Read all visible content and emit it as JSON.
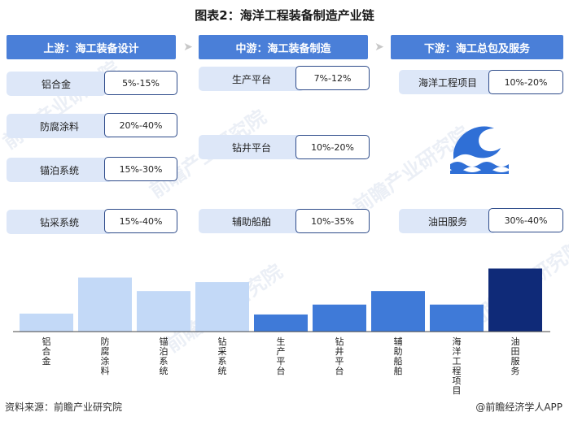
{
  "title": "图表2：海洋工程装备制造产业链",
  "stages": [
    {
      "label": "上游：海工装备设计"
    },
    {
      "label": "中游：海工装备制造"
    },
    {
      "label": "下游：海工总包及服务"
    }
  ],
  "items": [
    {
      "name": "铝合金",
      "value": "5%-15%"
    },
    {
      "name": "防腐涂料",
      "value": "20%-40%"
    },
    {
      "name": "锚泊系统",
      "value": "15%-30%"
    },
    {
      "name": "钻采系统",
      "value": "15%-40%"
    },
    {
      "name": "生产平台",
      "value": "7%-12%"
    },
    {
      "name": "钻井平台",
      "value": "10%-20%"
    },
    {
      "name": "辅助船舶",
      "value": "10%-35%"
    },
    {
      "name": "海洋工程项目",
      "value": "10%-20%"
    },
    {
      "name": "油田服务",
      "value": "30%-40%"
    }
  ],
  "chart_data": {
    "type": "bar",
    "categories": [
      "铝合金",
      "防腐涂料",
      "锚泊系统",
      "钻采系统",
      "生产平台",
      "钻井平台",
      "辅助船舶",
      "海洋工程项目",
      "油田服务"
    ],
    "values": [
      10,
      30,
      22.5,
      27.5,
      9.5,
      15,
      22.5,
      15,
      35
    ],
    "colors": [
      "#c3d9f7",
      "#c3d9f7",
      "#c3d9f7",
      "#c3d9f7",
      "#3f7ad8",
      "#3f7ad8",
      "#3f7ad8",
      "#3f7ad8",
      "#0f2a78"
    ],
    "ylim": [
      0,
      37
    ],
    "grid": false,
    "legend": "none"
  },
  "icons": {
    "wave": "wave-icon",
    "arrow": "chevron-right-icon"
  },
  "watermark": "前瞻产业研究院",
  "source": "资料来源：前瞻产业研究院",
  "brand": "@前瞻经济学人APP"
}
